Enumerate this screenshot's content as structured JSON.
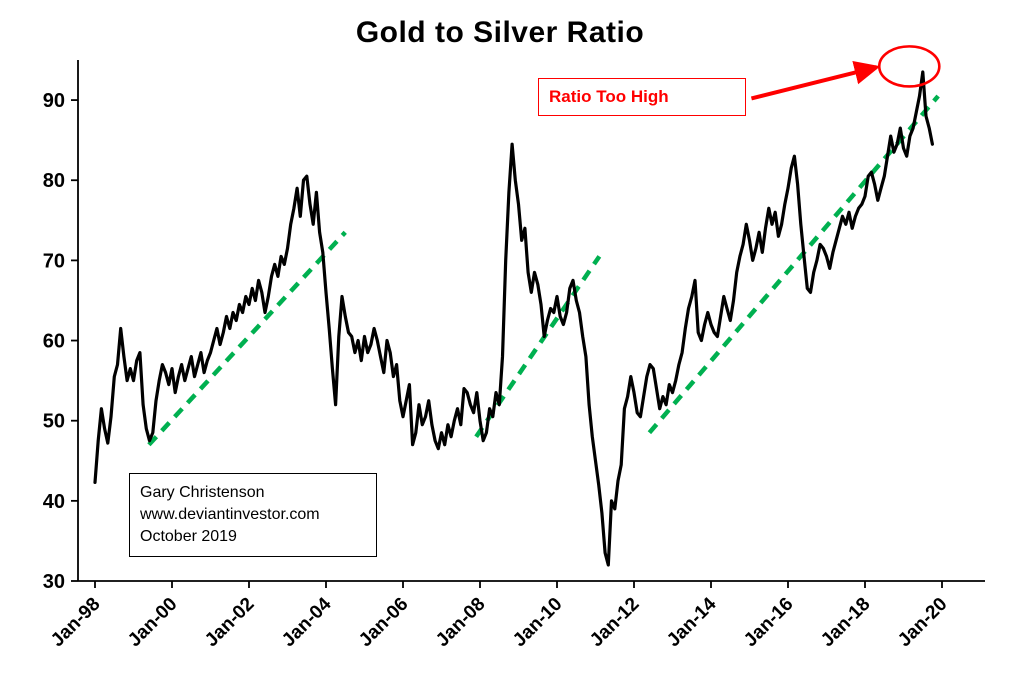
{
  "page": {
    "background": "#ffffff"
  },
  "chart_data": {
    "type": "line",
    "title": "Gold to Silver Ratio",
    "xlabel": "",
    "ylabel": "",
    "ylim": [
      30,
      95
    ],
    "xlim_years": [
      1997.6,
      2021.1
    ],
    "grid": false,
    "legend": "none",
    "y_ticks": [
      30,
      40,
      50,
      60,
      70,
      80,
      90
    ],
    "x_ticks": [
      {
        "year": 1998,
        "label": "Jan-98"
      },
      {
        "year": 2000,
        "label": "Jan-00"
      },
      {
        "year": 2002,
        "label": "Jan-02"
      },
      {
        "year": 2004,
        "label": "Jan-04"
      },
      {
        "year": 2006,
        "label": "Jan-06"
      },
      {
        "year": 2008,
        "label": "Jan-08"
      },
      {
        "year": 2010,
        "label": "Jan-10"
      },
      {
        "year": 2012,
        "label": "Jan-12"
      },
      {
        "year": 2014,
        "label": "Jan-14"
      },
      {
        "year": 2016,
        "label": "Jan-16"
      },
      {
        "year": 2018,
        "label": "Jan-18"
      },
      {
        "year": 2020,
        "label": "Jan-20"
      }
    ],
    "series": [
      {
        "name": "Gold to Silver Ratio",
        "color": "#000000",
        "start_year": 1998,
        "points_per_year": 12,
        "values": [
          42.3,
          47.5,
          51.5,
          49.0,
          47.2,
          50.5,
          55.5,
          57.0,
          61.5,
          58.0,
          55.0,
          56.5,
          55.0,
          57.5,
          58.5,
          52.0,
          49.0,
          47.5,
          48.5,
          52.5,
          55.0,
          57.0,
          56.0,
          54.5,
          56.5,
          53.5,
          55.5,
          57.0,
          55.0,
          56.5,
          58.0,
          55.5,
          57.0,
          58.5,
          56.0,
          57.5,
          58.5,
          60.0,
          61.5,
          59.5,
          61.0,
          63.0,
          61.5,
          63.5,
          62.5,
          64.5,
          63.5,
          65.5,
          64.5,
          66.5,
          65.0,
          67.5,
          66.0,
          63.5,
          65.5,
          68.0,
          69.5,
          68.0,
          70.5,
          69.5,
          71.5,
          74.5,
          76.5,
          79.0,
          75.5,
          80.0,
          80.5,
          77.0,
          74.5,
          78.5,
          73.5,
          71.0,
          66.0,
          61.5,
          56.5,
          52.0,
          60.5,
          65.5,
          63.0,
          61.0,
          60.5,
          58.5,
          60.0,
          57.5,
          60.5,
          58.5,
          59.5,
          61.5,
          60.0,
          58.0,
          56.0,
          60.0,
          58.5,
          55.5,
          57.0,
          52.5,
          50.5,
          52.5,
          54.5,
          47.0,
          48.5,
          52.0,
          49.5,
          50.5,
          52.5,
          49.5,
          47.5,
          46.5,
          48.5,
          47.0,
          49.5,
          48.0,
          50.0,
          51.5,
          49.5,
          54.0,
          53.5,
          52.0,
          51.0,
          53.5,
          50.0,
          47.5,
          48.5,
          51.5,
          50.5,
          53.5,
          52.0,
          58.0,
          70.0,
          78.5,
          84.5,
          80.0,
          77.0,
          72.5,
          74.0,
          68.5,
          66.0,
          68.5,
          67.0,
          64.5,
          60.5,
          62.5,
          64.0,
          63.5,
          65.5,
          63.0,
          62.0,
          63.5,
          66.5,
          67.5,
          65.0,
          63.5,
          60.5,
          58.0,
          52.0,
          48.0,
          45.0,
          42.0,
          38.5,
          33.5,
          32.0,
          40.0,
          39.0,
          42.5,
          44.5,
          51.5,
          53.0,
          55.5,
          53.5,
          51.0,
          50.5,
          53.0,
          55.5,
          57.0,
          56.5,
          54.0,
          51.5,
          53.0,
          52.0,
          54.5,
          53.5,
          55.0,
          57.0,
          58.5,
          61.5,
          64.0,
          65.5,
          67.5,
          61.0,
          60.0,
          62.0,
          63.5,
          62.0,
          61.0,
          60.5,
          63.0,
          65.5,
          64.0,
          62.5,
          65.0,
          68.5,
          70.5,
          72.0,
          74.5,
          72.5,
          70.0,
          71.5,
          73.5,
          71.0,
          74.0,
          76.5,
          74.5,
          76.0,
          73.0,
          74.5,
          77.0,
          79.0,
          81.5,
          83.0,
          79.5,
          74.5,
          70.5,
          66.5,
          66.0,
          68.5,
          70.0,
          72.0,
          71.5,
          70.5,
          69.0,
          71.0,
          72.5,
          74.0,
          75.5,
          74.5,
          76.0,
          74.0,
          75.5,
          76.5,
          77.0,
          78.0,
          80.5,
          81.0,
          79.5,
          77.5,
          79.0,
          80.5,
          83.0,
          85.5,
          83.5,
          84.5,
          86.5,
          84.0,
          83.0,
          85.5,
          86.5,
          88.5,
          90.5,
          93.5,
          88.0,
          86.5,
          84.5
        ]
      }
    ],
    "trendlines": {
      "color": "#00B050",
      "style": "dashed",
      "segments": [
        {
          "x1": 1999.4,
          "y1": 47.0,
          "x2": 2004.5,
          "y2": 73.5
        },
        {
          "x1": 2007.9,
          "y1": 48.0,
          "x2": 2011.1,
          "y2": 70.5
        },
        {
          "x1": 2012.4,
          "y1": 48.5,
          "x2": 2019.9,
          "y2": 90.5
        }
      ]
    },
    "annotations": {
      "label_box": {
        "text": "Ratio Too High",
        "color": "#ff0000"
      },
      "ellipse": {
        "cx": 2019.15,
        "cy": 94.2,
        "rx": 0.78,
        "ry": 2.5,
        "color": "#ff0000"
      },
      "arrow": {
        "x1": 2015.05,
        "y1": 90.2,
        "x2": 2018.3,
        "y2": 94.1,
        "color": "#ff0000"
      }
    },
    "source_box": {
      "lines": [
        "Gary Christenson",
        "www.deviantinvestor.com",
        "October 2019"
      ]
    }
  }
}
